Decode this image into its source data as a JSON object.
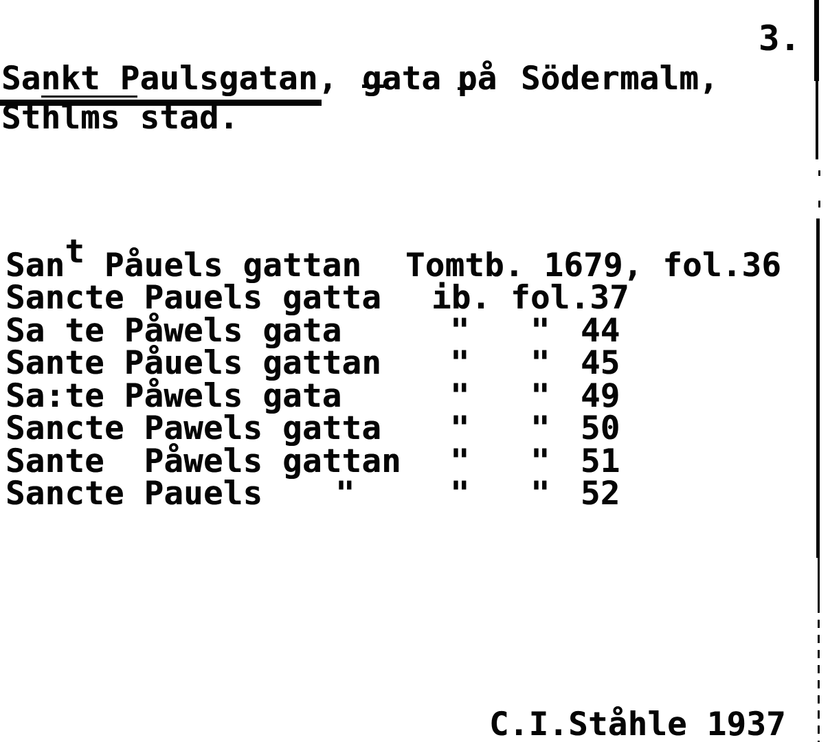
{
  "colors": {
    "ink": "#050505",
    "paper": "#ffffff"
  },
  "page": {
    "number": "3."
  },
  "header": {
    "headword": "Sankt Paulsgatan,",
    "category": "gata",
    "preposition": "på",
    "district": "Södermalm,",
    "line2": "Sthlms stad."
  },
  "variants": {
    "rows": [
      {
        "name_pre": "San",
        "name_sup": "t",
        "name_post": " Påuels gattan",
        "ref": "Tomtb. 1679, fol.36"
      },
      {
        "name": "Sancte Pauels gatta",
        "ref": "ib. fol.37"
      },
      {
        "name": "Sa te Påwels gata",
        "ditto1": "\"",
        "ditto2": "\"",
        "folio": "44"
      },
      {
        "name": "Sante Påuels gattan",
        "ditto1": "\"",
        "ditto2": "\"",
        "folio": "45"
      },
      {
        "name": "Sa:te Påwels gata",
        "ditto1": "\"",
        "ditto2": "\"",
        "folio": "49"
      },
      {
        "name": "Sancte Pawels gatta",
        "ditto1": "\"",
        "ditto2": "\"",
        "folio": "50"
      },
      {
        "name": "Sante  Påwels gattan",
        "ditto1": "\"",
        "ditto2": "\"",
        "folio": "51"
      },
      {
        "name": "Sancte Pauels",
        "name_ditto": "\"",
        "ditto1": "\"",
        "ditto2": "\"",
        "folio": "52"
      }
    ]
  },
  "footer": {
    "author": "C.I.Ståhle 1937"
  }
}
